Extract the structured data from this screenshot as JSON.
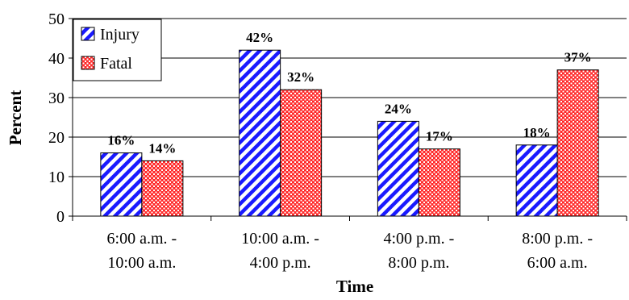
{
  "chart_data": {
    "type": "bar",
    "categories": [
      [
        "6:00 a.m. -",
        "10:00 a.m."
      ],
      [
        "10:00 a.m. -",
        "4:00 p.m."
      ],
      [
        "4:00 p.m. -",
        "8:00 p.m."
      ],
      [
        "8:00 p.m. -",
        "6:00 a.m."
      ]
    ],
    "series": [
      {
        "name": "Injury",
        "values": [
          16,
          42,
          24,
          18
        ],
        "labels": [
          "16%",
          "42%",
          "24%",
          "18%"
        ],
        "color": "#1a1aff",
        "pattern": "diagonal-stripes"
      },
      {
        "name": "Fatal",
        "values": [
          14,
          32,
          17,
          37
        ],
        "labels": [
          "14%",
          "32%",
          "17%",
          "37%"
        ],
        "color": "#ff2a2a",
        "pattern": "cross-hatch"
      }
    ],
    "title": "",
    "xlabel": "Time",
    "ylabel": "Percent",
    "ylim": [
      0,
      50
    ],
    "yticks": [
      0,
      10,
      20,
      30,
      40,
      50
    ],
    "grid": true,
    "legend": "top-left"
  }
}
